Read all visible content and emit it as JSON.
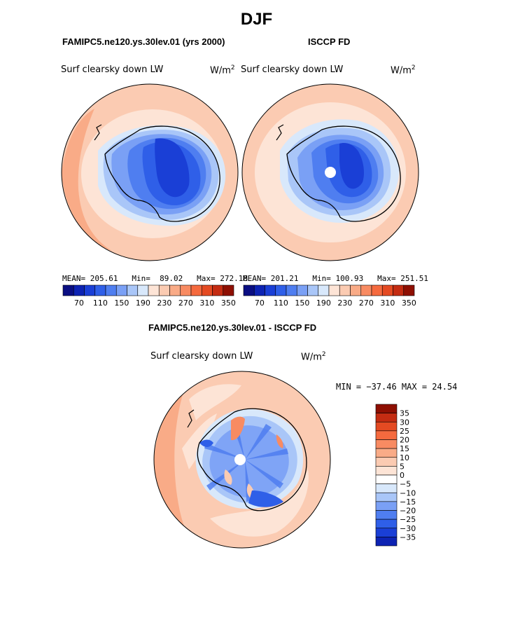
{
  "title": "DJF",
  "panels": [
    {
      "id": "model",
      "title": "FAMIPC5.ne120.ys.30lev.01 (yrs 2000)",
      "variable": "Surf clearsky down LW",
      "units": "W/m",
      "units_exp": "2",
      "stats": {
        "mean_label": "MEAN=",
        "mean": "205.61",
        "min_label": "Min=",
        "min": "89.02",
        "max_label": "Max=",
        "max": "272.18"
      }
    },
    {
      "id": "obs",
      "title": "ISCCP FD",
      "variable": "Surf clearsky down LW",
      "units": "W/m",
      "units_exp": "2",
      "stats": {
        "mean_label": "MEAN=",
        "mean": "201.21",
        "min_label": "Min=",
        "min": "100.93",
        "max_label": "Max=",
        "max": "251.51"
      }
    }
  ],
  "diff": {
    "title": "FAMIPC5.ne120.ys.30lev.01 - ISCCP FD",
    "variable": "Surf clearsky down LW",
    "units": "W/m",
    "units_exp": "2",
    "minmax": "MIN = −37.46 MAX =  24.54"
  },
  "chart_data": [
    {
      "type": "heatmap",
      "projection": "south polar stereographic",
      "colorbar_orientation": "horizontal",
      "colorbar_ticks": [
        "70",
        "110",
        "150",
        "190",
        "230",
        "270",
        "310",
        "350"
      ],
      "colorbar_colors": [
        "#0a0e82",
        "#0d23b3",
        "#1a3fd6",
        "#2f5fe8",
        "#4f7ef0",
        "#7aa0f5",
        "#a9c6f8",
        "#d8e8fb",
        "#fde4d6",
        "#fbcbb2",
        "#f9ab87",
        "#f88b62",
        "#f56a3e",
        "#e44a22",
        "#c42c12",
        "#8e0f02"
      ]
    },
    {
      "type": "heatmap",
      "projection": "south polar stereographic",
      "colorbar_orientation": "horizontal",
      "colorbar_ticks": [
        "70",
        "110",
        "150",
        "190",
        "230",
        "270",
        "310",
        "350"
      ],
      "colorbar_colors": [
        "#0a0e82",
        "#0d23b3",
        "#1a3fd6",
        "#2f5fe8",
        "#4f7ef0",
        "#7aa0f5",
        "#a9c6f8",
        "#d8e8fb",
        "#fde4d6",
        "#fbcbb2",
        "#f9ab87",
        "#f88b62",
        "#f56a3e",
        "#e44a22",
        "#c42c12",
        "#8e0f02"
      ]
    },
    {
      "type": "heatmap",
      "projection": "south polar stereographic",
      "colorbar_orientation": "vertical",
      "colorbar_ticks": [
        "35",
        "30",
        "25",
        "20",
        "15",
        "10",
        "5",
        "0",
        "−5",
        "−10",
        "−15",
        "−20",
        "−25",
        "−30",
        "−35"
      ],
      "colorbar_colors": [
        "#8e0f02",
        "#c42c12",
        "#e44a22",
        "#f56a3e",
        "#f88b62",
        "#f9ab87",
        "#fbcbb2",
        "#fde4d6",
        "#ffffff",
        "#d8e8fb",
        "#a9c6f8",
        "#7aa0f5",
        "#4f7ef0",
        "#2f5fe8",
        "#1a3fd6",
        "#0d23b3"
      ]
    }
  ]
}
